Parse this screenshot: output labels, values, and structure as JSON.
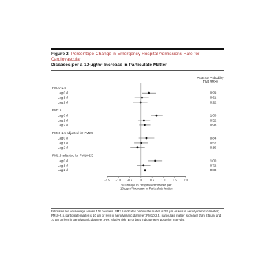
{
  "figure": {
    "label": "Figure 2.",
    "title_rest": "Percentage Change in Emergency Hospital Admissions Rate for Cardiovascular",
    "title_line2": "Diseases per a 10-µg/m³ Increase in Particulate Matter",
    "caption": "Estimates are on average across 108 counties. PM2.5 indicates particulate matter is 2.5 µm or less in aerody-namic diameter; PM10-2.5, particulate matter is 10 µm or less in aerodynamic diameter; PM10-2.5, particulate matter is greater than 2.5 µm and 10 µm or less in aerodynamic diameter; RR, relative risk. Error bars indicate 95% posterior intervals."
  },
  "chart_data": {
    "type": "forest",
    "xlabel": "% Change in Hospital Admissions per\n10-µg/m³ Increase in Particulate Matter",
    "xlim": [
      -1.5,
      2.0
    ],
    "xticks": [
      "-1.5",
      "-1.0",
      "-0.5",
      "0",
      "0.5",
      "1.0",
      "1.5",
      "2.0"
    ],
    "right_header": [
      "Posterior Probability",
      "That RR>0"
    ],
    "groups": [
      {
        "label": "PM10-2.5",
        "rows": [
          {
            "label": "Lag 0 d",
            "est": 0.36,
            "lo": 0.05,
            "hi": 0.68,
            "prob": "0.99"
          },
          {
            "label": "Lag 1 d",
            "est": 0.05,
            "lo": -0.28,
            "hi": 0.36,
            "prob": "0.61"
          },
          {
            "label": "Lag 2 d",
            "est": -0.02,
            "lo": -0.34,
            "hi": 0.3,
            "prob": "0.22"
          }
        ]
      },
      {
        "label": "PM2.5",
        "rows": [
          {
            "label": "Lag 0 d",
            "est": 0.71,
            "lo": 0.45,
            "hi": 0.98,
            "prob": "1.00"
          },
          {
            "label": "Lag 1 d",
            "est": 0.14,
            "lo": -0.12,
            "hi": 0.41,
            "prob": "0.52"
          },
          {
            "label": "Lag 2 d",
            "est": 0.17,
            "lo": -0.08,
            "hi": 0.42,
            "prob": "0.98"
          }
        ]
      },
      {
        "label": "PM10-2.5 adjusted for PM2.5",
        "rows": [
          {
            "label": "Lag 0 d",
            "est": 0.25,
            "lo": -0.1,
            "hi": 0.6,
            "prob": "0.84"
          },
          {
            "label": "Lag 1 d",
            "est": 0.02,
            "lo": -0.3,
            "hi": 0.34,
            "prob": "0.52"
          },
          {
            "label": "Lag 2 d",
            "est": -0.15,
            "lo": -0.48,
            "hi": 0.18,
            "prob": "0.16"
          }
        ]
      },
      {
        "label": "PM2.5 adjusted for PM10-2.5",
        "rows": [
          {
            "label": "Lag 0 d",
            "est": 0.64,
            "lo": 0.33,
            "hi": 0.96,
            "prob": "1.00"
          },
          {
            "label": "Lag 1 d",
            "est": 0.12,
            "lo": -0.18,
            "hi": 0.42,
            "prob": "0.72"
          },
          {
            "label": "Lag 2 d",
            "est": 0.19,
            "lo": -0.1,
            "hi": 0.48,
            "prob": "0.88"
          }
        ]
      }
    ]
  }
}
